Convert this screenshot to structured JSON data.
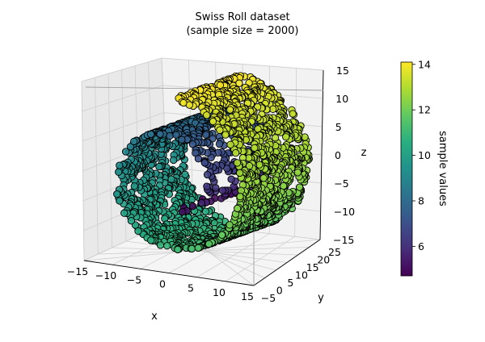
{
  "chart_data": {
    "type": "scatter",
    "projection": "3d",
    "title": "Swiss Roll dataset",
    "subtitle": "(sample size = 2000)",
    "xlabel": "x",
    "ylabel": "y",
    "zlabel": "z",
    "xlim": [
      -15,
      15
    ],
    "ylim": [
      -5,
      25
    ],
    "zlim": [
      -15,
      15
    ],
    "xticks": [
      "−15",
      "−10",
      "−5",
      "0",
      "5",
      "10",
      "15"
    ],
    "yticks": [
      "−5",
      "0",
      "5",
      "10",
      "15",
      "20",
      "25"
    ],
    "zticks": [
      "−15",
      "−10",
      "−5",
      "0",
      "5",
      "10",
      "15"
    ],
    "grid": true,
    "sample_size": 2000,
    "value_range": [
      4.7,
      14.1
    ],
    "colorbar": {
      "label": "sample values",
      "colormap": "viridis",
      "range": [
        4.7,
        14.1
      ],
      "ticks": [
        "6",
        "8",
        "10",
        "12",
        "14"
      ]
    },
    "marker_edge_color": "#000000",
    "pane_color": "#f2f2f2"
  }
}
